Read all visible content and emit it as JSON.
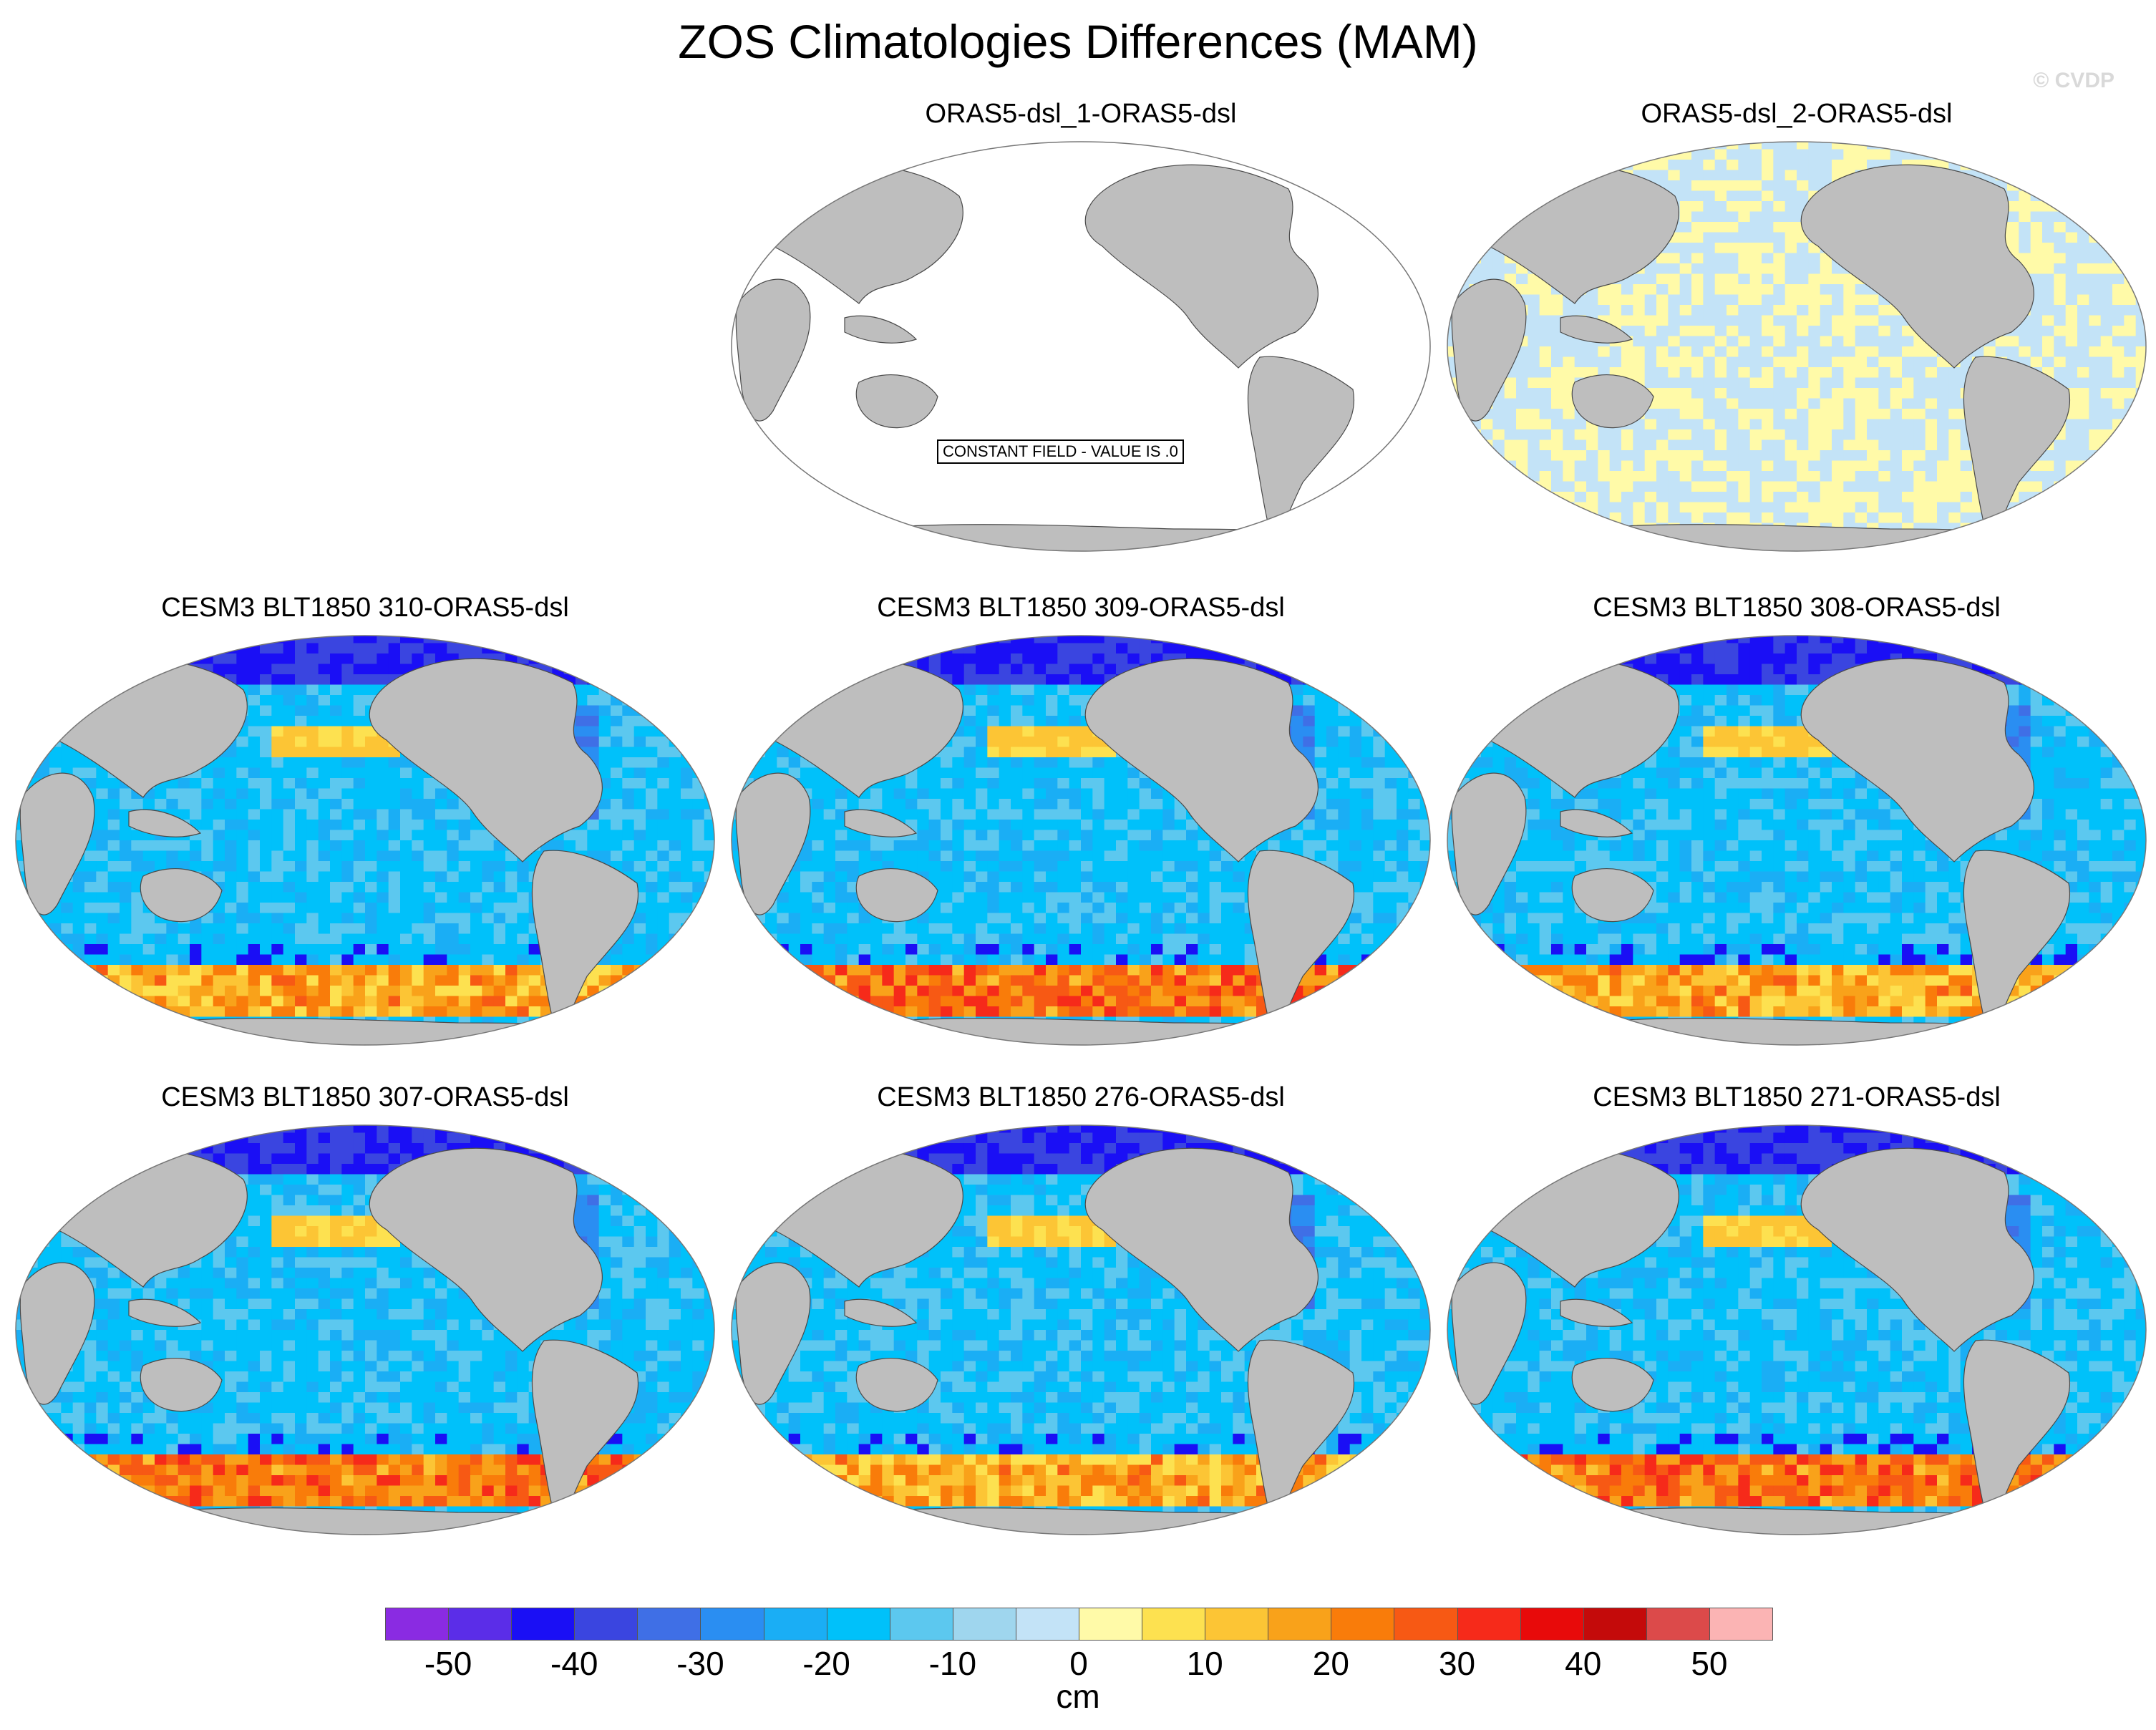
{
  "title": "ZOS Climatologies Differences (MAM)",
  "watermark": "© CVDP",
  "colors": {
    "land": "#bebebe",
    "coast": "#4a4a4a",
    "colormap": [
      "#8a2be2",
      "#5b2de8",
      "#1a0ff5",
      "#3a45e0",
      "#3f6fe6",
      "#2a8ef2",
      "#1aaef5",
      "#00c1fa",
      "#5cc8ef",
      "#9fd6ee",
      "#c3e3f7",
      "#fffaa8",
      "#fde150",
      "#fcc535",
      "#f9a21a",
      "#f97c0a",
      "#f75914",
      "#f62a1a",
      "#e80a0a",
      "#c40a0a",
      "#dc4a4a",
      "#fbb4b4"
    ]
  },
  "constant_field_label": "CONSTANT FIELD - VALUE IS .0",
  "panels": [
    {
      "title": "ORAS5-dsl_1-ORAS5-dsl",
      "style": "constant"
    },
    {
      "title": "ORAS5-dsl_2-ORAS5-dsl",
      "style": "near-zero"
    },
    {
      "title": "CESM3 BLT1850 310-ORAS5-dsl",
      "style": "full"
    },
    {
      "title": "CESM3 BLT1850 309-ORAS5-dsl",
      "style": "full"
    },
    {
      "title": "CESM3 BLT1850 308-ORAS5-dsl",
      "style": "full"
    },
    {
      "title": "CESM3 BLT1850 307-ORAS5-dsl",
      "style": "full"
    },
    {
      "title": "CESM3 BLT1850 276-ORAS5-dsl",
      "style": "full"
    },
    {
      "title": "CESM3 BLT1850 271-ORAS5-dsl",
      "style": "full"
    }
  ],
  "colorbar": {
    "units": "cm",
    "tick_labels": [
      "-50",
      "-40",
      "-30",
      "-20",
      "-10",
      "0",
      "10",
      "20",
      "30",
      "40",
      "50"
    ],
    "levels": [
      -55,
      -50,
      -45,
      -40,
      -35,
      -30,
      -25,
      -20,
      -15,
      -10,
      -5,
      0,
      5,
      10,
      15,
      20,
      25,
      30,
      35,
      40,
      45,
      50,
      55
    ],
    "colors": [
      "#8a2be2",
      "#5b2de8",
      "#1a0ff5",
      "#3a45e0",
      "#3f6fe6",
      "#2a8ef2",
      "#1aaef5",
      "#00c1fa",
      "#5cc8ef",
      "#9fd6ee",
      "#c3e3f7",
      "#fffaa8",
      "#fde150",
      "#fcc535",
      "#f9a21a",
      "#f97c0a",
      "#f75914",
      "#f62a1a",
      "#e80a0a",
      "#c40a0a",
      "#dc4a4a",
      "#fbb4b4"
    ]
  }
}
